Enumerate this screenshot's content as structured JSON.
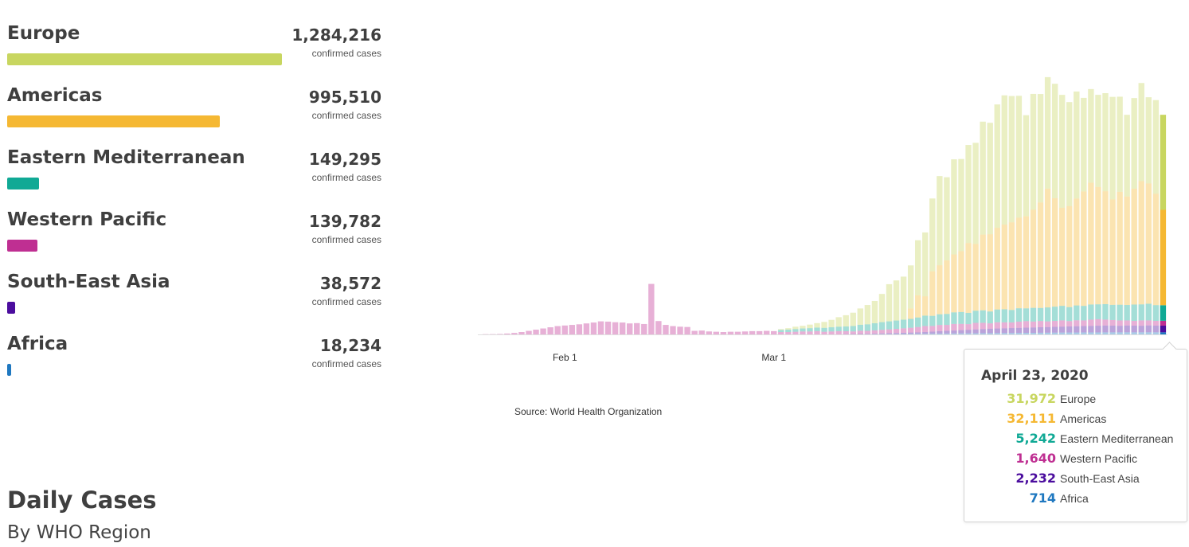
{
  "regions": [
    {
      "name": "Europe",
      "count": "1,284,216",
      "sub": "confirmed cases",
      "color": "#c8d660",
      "share": 1.0
    },
    {
      "name": "Americas",
      "count": "995,510",
      "sub": "confirmed cases",
      "color": "#f5b833",
      "share": 0.775
    },
    {
      "name": "Eastern Mediterranean",
      "count": "149,295",
      "sub": "confirmed cases",
      "color": "#10a995",
      "share": 0.116
    },
    {
      "name": "Western Pacific",
      "count": "139,782",
      "sub": "confirmed cases",
      "color": "#bf2f92",
      "share": 0.109
    },
    {
      "name": "South-East Asia",
      "count": "38,572",
      "sub": "confirmed cases",
      "color": "#4b0d9e",
      "share": 0.03
    },
    {
      "name": "Africa",
      "count": "18,234",
      "sub": "confirmed cases",
      "color": "#1f78c0",
      "share": 0.014
    }
  ],
  "source": "Source:  World Health Organization",
  "title": "Daily Cases",
  "subtitle": "By WHO Region",
  "tooltip": {
    "date": "April 23, 2020",
    "rows": [
      {
        "value": "31,972",
        "name": "Europe",
        "color": "#c8d660"
      },
      {
        "value": "32,111",
        "name": "Americas",
        "color": "#f5b833"
      },
      {
        "value": "5,242",
        "name": "Eastern Mediterranean",
        "color": "#10a995"
      },
      {
        "value": "1,640",
        "name": "Western Pacific",
        "color": "#bf2f92"
      },
      {
        "value": "2,232",
        "name": "South-East Asia",
        "color": "#4b0d9e"
      },
      {
        "value": "714",
        "name": "Africa",
        "color": "#1f78c0"
      }
    ]
  },
  "chart_data": {
    "type": "bar",
    "stacked": true,
    "x_tick_labels": [
      {
        "label": "Feb 1",
        "index": 11
      },
      {
        "label": "Mar 1",
        "index": 40
      }
    ],
    "highlight_index": 94,
    "ylim": [
      0,
      97000
    ],
    "series_order": [
      "africa",
      "sea",
      "wp",
      "em",
      "americas",
      "europe"
    ],
    "series_colors": {
      "europe": "#c8d660",
      "americas": "#f5b833",
      "em": "#10a995",
      "wp": "#bf2f92",
      "sea": "#4b0d9e",
      "africa": "#1f78c0"
    },
    "series": {
      "europe": [
        0,
        0,
        0,
        0,
        0,
        0,
        0,
        0,
        0,
        0,
        0,
        0,
        0,
        0,
        0,
        0,
        0,
        0,
        0,
        0,
        0,
        0,
        0,
        0,
        0,
        0,
        0,
        0,
        0,
        0,
        0,
        0,
        0,
        0,
        0,
        0,
        0,
        0,
        0,
        0,
        0,
        300,
        500,
        800,
        900,
        1200,
        1500,
        2000,
        2500,
        3200,
        3800,
        4500,
        5500,
        6500,
        7500,
        9500,
        12500,
        13500,
        14500,
        14500,
        18500,
        21500,
        24500,
        30000,
        28000,
        32000,
        31000,
        33000,
        34000,
        38000,
        37500,
        41500,
        43500,
        42500,
        41000,
        34000,
        39000,
        36500,
        37500,
        38500,
        38000,
        35000,
        36000,
        31500,
        31500,
        31000,
        33000,
        34500,
        32000,
        27500,
        30500,
        33000,
        29000,
        31500,
        31972
      ],
      "americas": [
        0,
        0,
        0,
        0,
        0,
        0,
        0,
        0,
        0,
        0,
        0,
        0,
        0,
        0,
        0,
        0,
        0,
        0,
        0,
        0,
        0,
        0,
        0,
        0,
        0,
        0,
        0,
        0,
        0,
        0,
        0,
        0,
        0,
        0,
        0,
        0,
        0,
        0,
        0,
        0,
        0,
        0,
        0,
        0,
        0,
        0,
        0,
        0,
        0,
        0,
        0,
        0,
        0,
        0,
        0,
        0,
        0,
        0,
        0,
        3500,
        7500,
        6500,
        15000,
        16500,
        18000,
        19500,
        20500,
        23500,
        22500,
        25500,
        26000,
        27500,
        28500,
        29500,
        30500,
        31000,
        33000,
        35500,
        40000,
        36500,
        33000,
        34000,
        36000,
        38500,
        41000,
        39500,
        38000,
        35500,
        38000,
        36500,
        39000,
        41500,
        40500,
        37500,
        32111
      ],
      "em": [
        0,
        0,
        0,
        0,
        0,
        0,
        0,
        0,
        0,
        0,
        0,
        0,
        0,
        0,
        0,
        0,
        0,
        0,
        0,
        0,
        0,
        0,
        0,
        0,
        0,
        0,
        0,
        0,
        0,
        0,
        0,
        0,
        0,
        0,
        0,
        0,
        0,
        0,
        0,
        0,
        0,
        700,
        800,
        900,
        1000,
        1100,
        1200,
        1300,
        1400,
        1500,
        1600,
        1800,
        2000,
        2200,
        2400,
        2600,
        2700,
        2800,
        2900,
        3000,
        3200,
        3500,
        3400,
        3600,
        3700,
        3900,
        4000,
        3800,
        4100,
        4200,
        4000,
        4300,
        4400,
        4200,
        4500,
        4300,
        4600,
        4400,
        4700,
        4800,
        4900,
        4700,
        5000,
        4900,
        5100,
        5000,
        5200,
        5100,
        5300,
        5200,
        5500,
        5400,
        5600,
        5300,
        5242
      ],
      "wp": [
        80,
        100,
        150,
        300,
        500,
        800,
        1200,
        1600,
        2000,
        2400,
        2800,
        3000,
        3200,
        3400,
        3700,
        4000,
        4400,
        4300,
        4100,
        4000,
        3700,
        3800,
        3500,
        17000,
        4500,
        3200,
        2800,
        2600,
        2500,
        1200,
        1300,
        1000,
        900,
        800,
        900,
        900,
        1000,
        1100,
        1100,
        1200,
        1100,
        800,
        800,
        900,
        1000,
        1000,
        1100,
        900,
        1000,
        1100,
        1000,
        900,
        1100,
        1000,
        1100,
        1200,
        1300,
        1400,
        1500,
        1600,
        1800,
        2000,
        1900,
        2100,
        2000,
        2200,
        2100,
        1900,
        2200,
        2100,
        1800,
        2100,
        2000,
        1900,
        2100,
        2200,
        2000,
        2100,
        1900,
        2000,
        2100,
        1800,
        2000,
        1900,
        2100,
        2200,
        2000,
        1900,
        1800,
        1700,
        1600,
        1800,
        1700,
        1600,
        1640
      ],
      "sea": [
        0,
        0,
        0,
        0,
        0,
        0,
        0,
        0,
        0,
        0,
        0,
        0,
        0,
        0,
        0,
        0,
        0,
        0,
        0,
        0,
        0,
        0,
        0,
        0,
        0,
        0,
        0,
        0,
        0,
        0,
        0,
        0,
        0,
        0,
        0,
        0,
        0,
        0,
        0,
        0,
        0,
        0,
        0,
        0,
        0,
        0,
        0,
        0,
        0,
        0,
        50,
        80,
        100,
        150,
        200,
        250,
        300,
        350,
        400,
        450,
        500,
        600,
        700,
        800,
        900,
        1000,
        1100,
        1200,
        1300,
        1400,
        1500,
        1550,
        1600,
        1650,
        1700,
        1750,
        1800,
        1850,
        1900,
        1950,
        2000,
        2050,
        2100,
        2150,
        2200,
        2250,
        2300,
        2250,
        2200,
        2300,
        2250,
        2200,
        2300,
        2250,
        2232
      ],
      "africa": [
        0,
        0,
        0,
        0,
        0,
        0,
        0,
        0,
        0,
        0,
        0,
        0,
        0,
        0,
        0,
        0,
        0,
        0,
        0,
        0,
        0,
        0,
        0,
        0,
        0,
        0,
        0,
        0,
        0,
        0,
        0,
        0,
        0,
        0,
        0,
        0,
        0,
        0,
        0,
        0,
        0,
        0,
        0,
        0,
        0,
        0,
        0,
        0,
        0,
        0,
        20,
        30,
        40,
        50,
        60,
        80,
        100,
        120,
        150,
        180,
        200,
        220,
        250,
        280,
        300,
        320,
        340,
        360,
        380,
        400,
        420,
        440,
        460,
        480,
        500,
        520,
        540,
        560,
        580,
        600,
        620,
        640,
        650,
        660,
        670,
        680,
        690,
        700,
        700,
        710,
        700,
        710,
        720,
        710,
        714
      ]
    }
  }
}
